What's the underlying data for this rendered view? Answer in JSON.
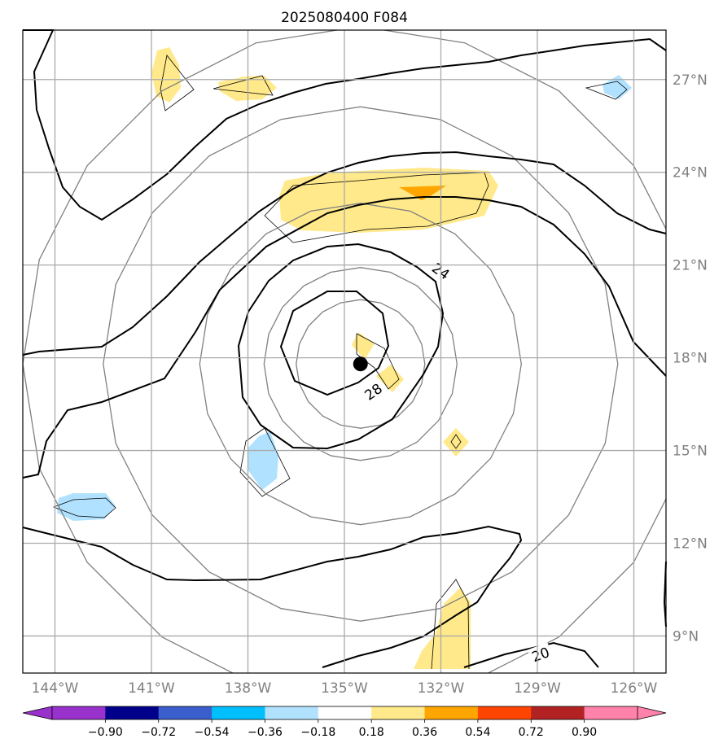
{
  "chart_data": {
    "type": "contour-map",
    "title": "2025080400 F084",
    "lon_range": [
      -145,
      -125
    ],
    "lat_range": [
      7.8,
      28.6
    ],
    "lon_ticks": [
      {
        "value": -144,
        "label": "144°W"
      },
      {
        "value": -141,
        "label": "141°W"
      },
      {
        "value": -138,
        "label": "138°W"
      },
      {
        "value": -135,
        "label": "135°W"
      },
      {
        "value": -132,
        "label": "132°W"
      },
      {
        "value": -129,
        "label": "129°W"
      },
      {
        "value": -126,
        "label": "126°W"
      }
    ],
    "lat_ticks": [
      {
        "value": 27,
        "label": "27°N"
      },
      {
        "value": 24,
        "label": "24°N"
      },
      {
        "value": 21,
        "label": "21°N"
      },
      {
        "value": 18,
        "label": "18°N"
      },
      {
        "value": 15,
        "label": "15°N"
      },
      {
        "value": 12,
        "label": "12°N"
      },
      {
        "value": 9,
        "label": "9°N"
      }
    ],
    "storm_center": {
      "lon": -134.5,
      "lat": 17.8
    },
    "range_rings_deg": [
      2,
      3,
      5,
      8,
      10.5
    ],
    "contour_labels": [
      {
        "text": "24",
        "lon": -132.0,
        "lat": 20.8,
        "rotate": 35
      },
      {
        "text": "28",
        "lon": -134.1,
        "lat": 16.9,
        "rotate": -35
      },
      {
        "text": "20",
        "lon": -128.9,
        "lat": 8.4,
        "rotate": -20
      }
    ],
    "colorbar": {
      "ticks": [
        "−0.90",
        "−0.72",
        "−0.54",
        "−0.36",
        "−0.18",
        "0.18",
        "0.36",
        "0.54",
        "0.72",
        "0.90"
      ],
      "colors": [
        "#9932cc",
        "#00008b",
        "#3a5fcd",
        "#00bfff",
        "#b0e2ff",
        "#ffffff",
        "#ffe98a",
        "#ffa500",
        "#ff4500",
        "#b22222",
        "#ff82ab"
      ],
      "extend": "both"
    }
  }
}
